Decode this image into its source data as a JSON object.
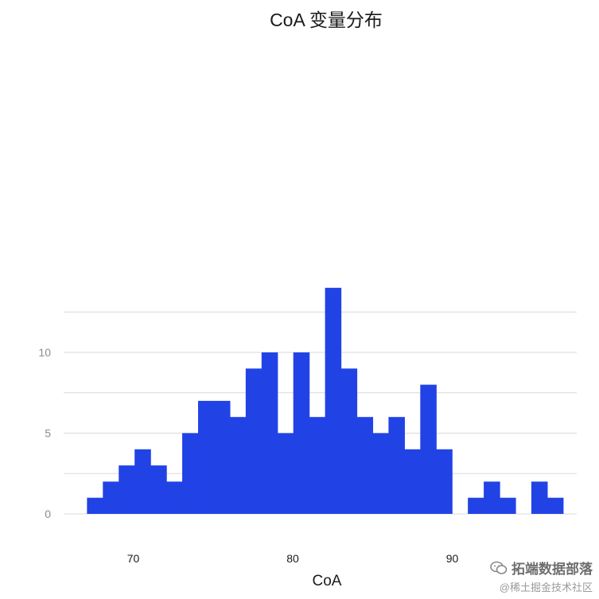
{
  "chart_data": {
    "type": "bar",
    "title": "CoA 变量分布",
    "xlabel": "CoA",
    "ylabel": "",
    "xlim": [
      65.5,
      98.0
    ],
    "ylim": [
      0,
      14.5
    ],
    "bin_width": 0.995,
    "bin_start": 67.1,
    "values": [
      1,
      2,
      3,
      4,
      3,
      2,
      5,
      7,
      7,
      6,
      9,
      10,
      5,
      10,
      6,
      14,
      9,
      6,
      5,
      6,
      4,
      8,
      4,
      0,
      1,
      2,
      1,
      0,
      2,
      1
    ],
    "xticks": [
      70,
      80,
      90
    ],
    "yticks": [
      0,
      5,
      10
    ],
    "grid_lines": [
      0,
      2.5,
      5,
      7.5,
      10,
      12.5
    ],
    "grid": "horizontal",
    "bar_color": "#2143e6"
  },
  "watermark": {
    "icon": "wechat-icon",
    "line1": "拓端数据部落",
    "line2": "@稀土掘金技术社区"
  }
}
